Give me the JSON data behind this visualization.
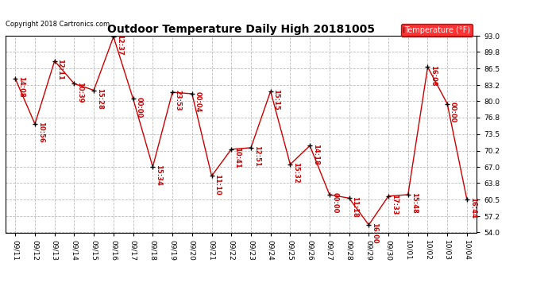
{
  "title": "Outdoor Temperature Daily High 20181005",
  "copyright_text": "Copyright 2018 Cartronics.com",
  "legend_label": "Temperature (°F)",
  "x_labels": [
    "09/11",
    "09/12",
    "09/13",
    "09/14",
    "09/15",
    "09/16",
    "09/17",
    "09/18",
    "09/19",
    "09/20",
    "09/21",
    "09/22",
    "09/23",
    "09/24",
    "09/25",
    "09/26",
    "09/27",
    "09/28",
    "09/29",
    "09/30",
    "10/01",
    "10/02",
    "10/03",
    "10/04"
  ],
  "temperatures": [
    84.5,
    75.5,
    88.0,
    83.5,
    82.2,
    92.8,
    80.5,
    67.0,
    81.8,
    81.5,
    65.2,
    70.5,
    70.8,
    82.0,
    67.5,
    71.2,
    61.5,
    60.8,
    55.5,
    61.2,
    61.5,
    86.8,
    79.5,
    60.5
  ],
  "annotations": [
    "14:08",
    "10:56",
    "12:11",
    "10:39",
    "15:28",
    "12:37",
    "00:00",
    "15:34",
    "23:53",
    "00:04",
    "11:10",
    "10:41",
    "12:51",
    "15:15",
    "15:32",
    "14:18",
    "00:00",
    "11:18",
    "16:00",
    "17:33",
    "15:48",
    "16:08",
    "00:00",
    "16:44"
  ],
  "line_color": "#cc0000",
  "marker_color": "#000000",
  "annotation_color": "#cc0000",
  "grid_color": "#bbbbbb",
  "background_color": "#ffffff",
  "ylim": [
    54.0,
    93.0
  ],
  "yticks": [
    54.0,
    57.2,
    60.5,
    63.8,
    67.0,
    70.2,
    73.5,
    76.8,
    80.0,
    83.2,
    86.5,
    89.8,
    93.0
  ],
  "title_fontsize": 10,
  "copyright_fontsize": 6,
  "annotation_fontsize": 6,
  "axis_fontsize": 6.5,
  "legend_fontsize": 7
}
